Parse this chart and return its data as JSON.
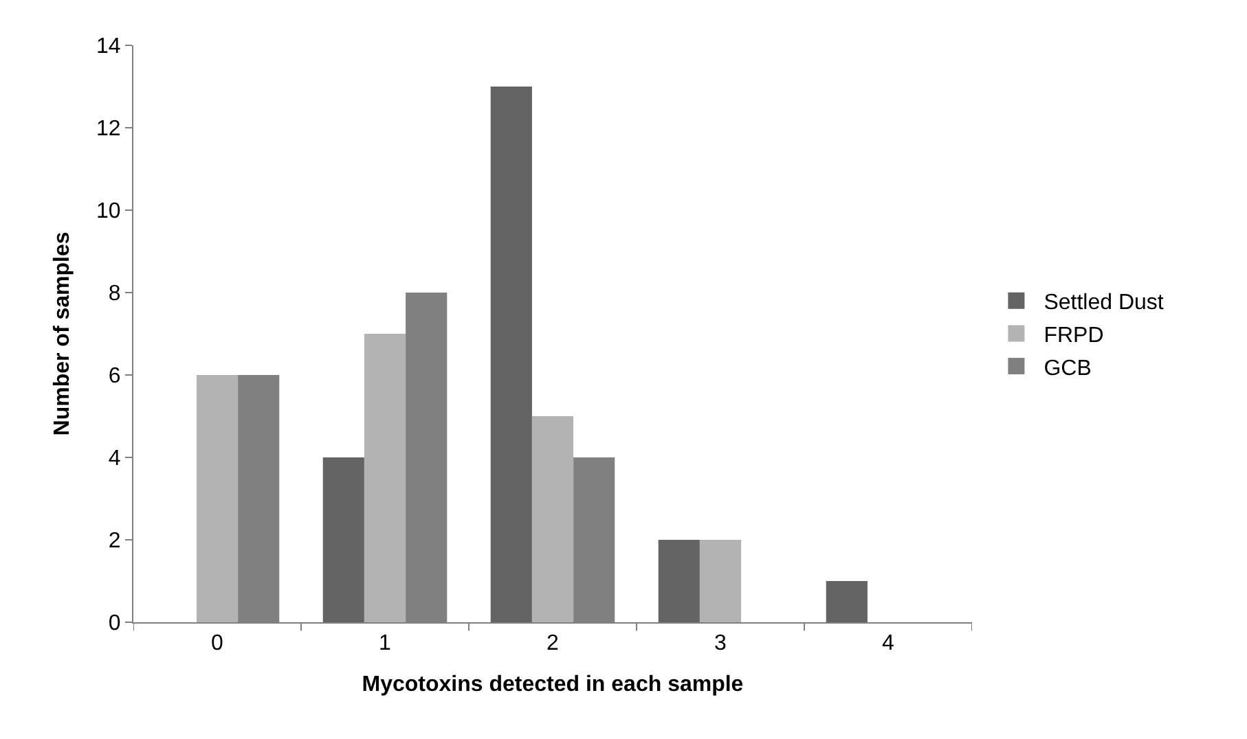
{
  "chart_data": {
    "type": "bar",
    "xlabel": "Mycotoxins detected in each sample",
    "ylabel": "Number of samples",
    "categories": [
      "0",
      "1",
      "2",
      "3",
      "4"
    ],
    "series": [
      {
        "name": "Settled Dust",
        "color": "#636363",
        "values": [
          0,
          4,
          13,
          2,
          1
        ]
      },
      {
        "name": "FRPD",
        "color": "#b3b3b3",
        "values": [
          6,
          7,
          5,
          2,
          0
        ]
      },
      {
        "name": "GCB",
        "color": "#808080",
        "values": [
          6,
          8,
          4,
          0,
          0
        ]
      }
    ],
    "ylim": [
      0,
      14
    ],
    "yticks": [
      0,
      2,
      4,
      6,
      8,
      10,
      12,
      14
    ],
    "legend": "right"
  }
}
